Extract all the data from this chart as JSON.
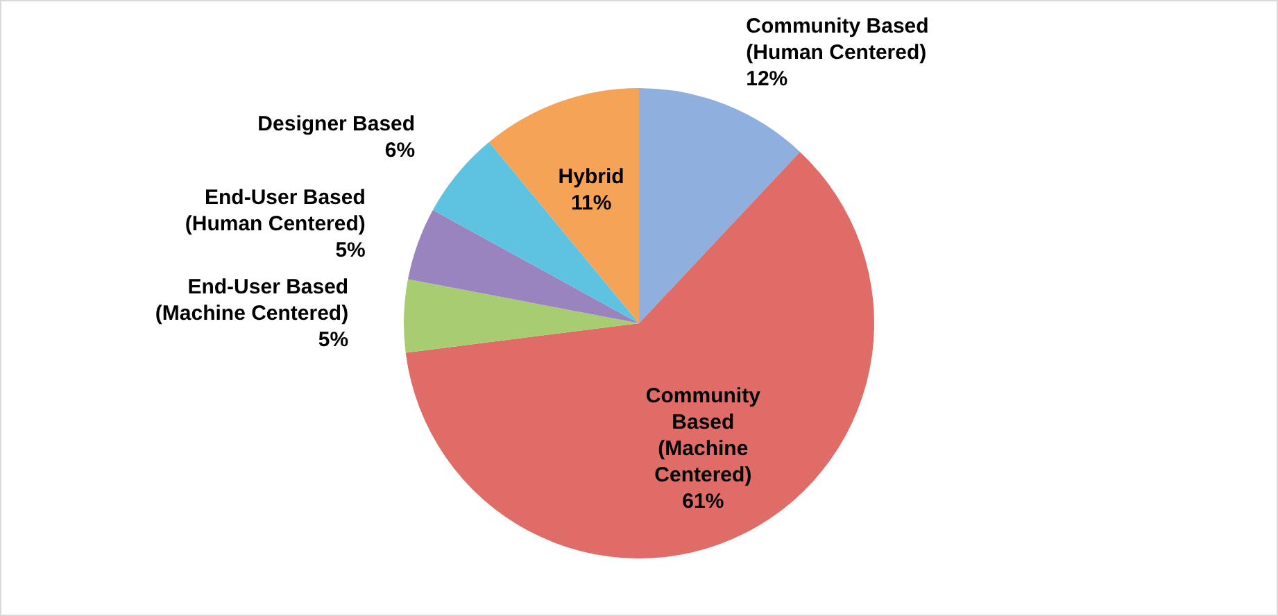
{
  "chart_data": {
    "type": "pie",
    "categories": [
      "Community Based (Human Centered)",
      "Community Based (Machine Centered)",
      "End-User Based (Machine Centered)",
      "End-User Based (Human Centered)",
      "Designer Based",
      "Hybrid"
    ],
    "values": [
      12,
      61,
      5,
      5,
      6,
      11
    ],
    "colors": [
      "#8fb0de",
      "#e06c68",
      "#a8cc72",
      "#9a84bf",
      "#5dc3e0",
      "#f5a356"
    ],
    "value_labels": [
      "12%",
      "61%",
      "5%",
      "5%",
      "6%",
      "11%"
    ],
    "legend": false
  }
}
